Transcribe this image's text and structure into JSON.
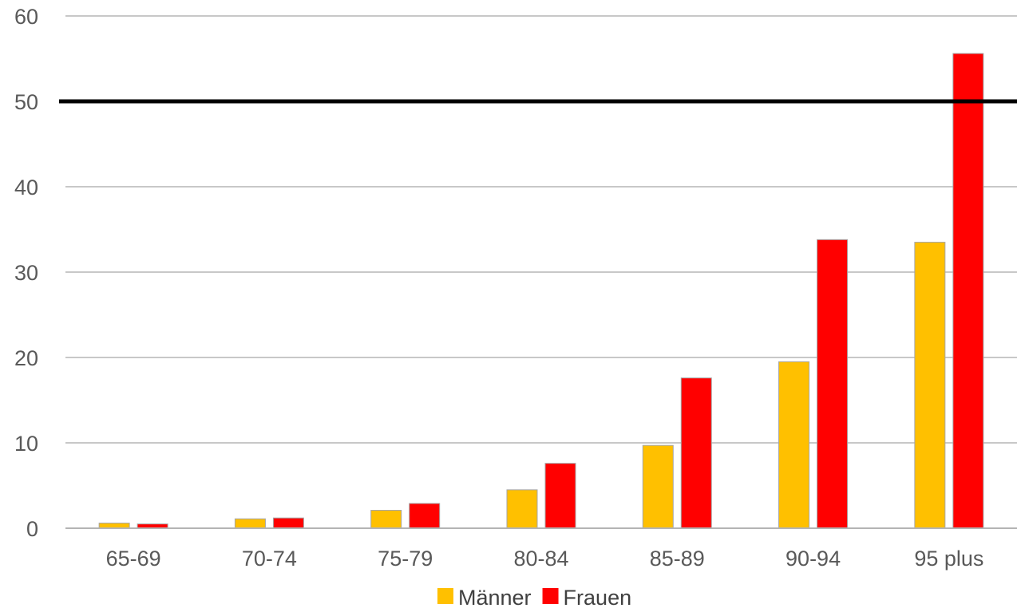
{
  "chart_data": {
    "type": "bar",
    "categories": [
      "65-69",
      "70-74",
      "75-79",
      "80-84",
      "85-89",
      "90-94",
      "95 plus"
    ],
    "series": [
      {
        "name": "Männer",
        "color": "#ffc000",
        "values": [
          0.6,
          1.1,
          2.1,
          4.5,
          9.7,
          19.5,
          33.5
        ]
      },
      {
        "name": "Frauen",
        "color": "#ff0000",
        "values": [
          0.5,
          1.2,
          2.9,
          7.6,
          17.6,
          33.8,
          55.6
        ]
      }
    ],
    "ylim": [
      0,
      60
    ],
    "yticks": [
      "0",
      "10",
      "20",
      "30",
      "40",
      "50",
      "60"
    ],
    "reference_line": {
      "value": 50,
      "color": "#000000"
    },
    "grid": true,
    "legend_position": "bottom",
    "title": "",
    "xlabel": "",
    "ylabel": ""
  }
}
